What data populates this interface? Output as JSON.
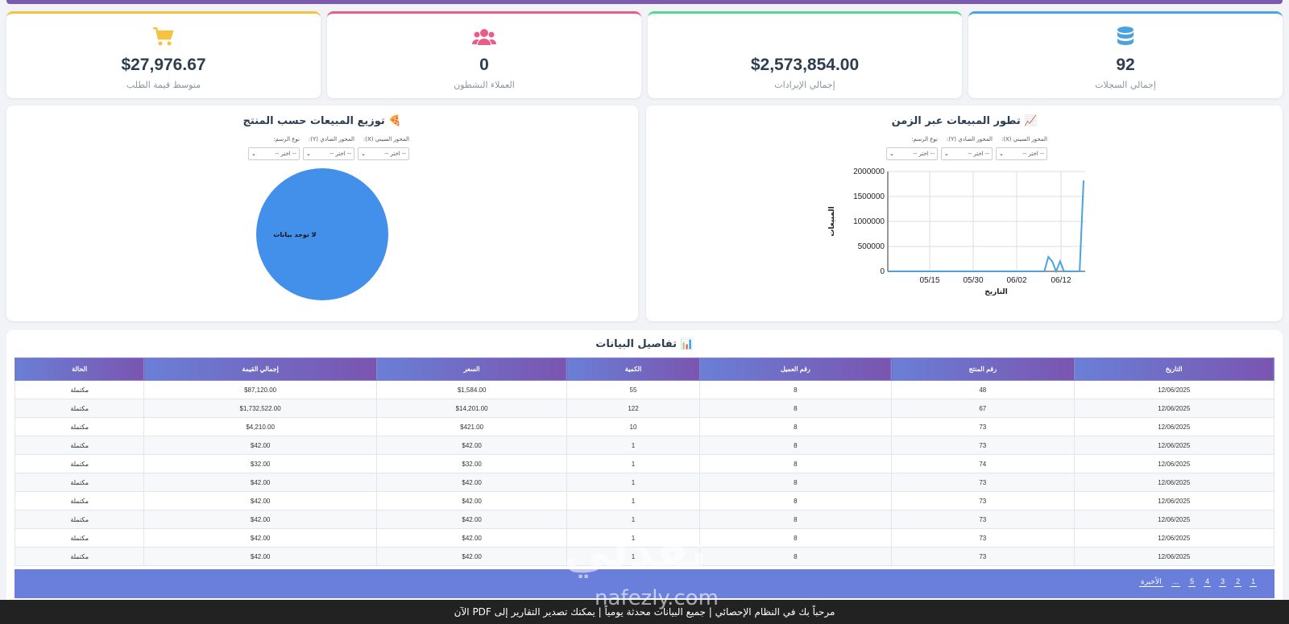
{
  "stats": [
    {
      "icon": "database-icon",
      "value": "92",
      "label": "إجمالي السجلات",
      "color": "#4aa3df"
    },
    {
      "icon": "revenue-icon",
      "value": "$2,573,854.00",
      "label": "إجمالي الإيرادات",
      "color": "#55d98d"
    },
    {
      "icon": "users-icon",
      "value": "0",
      "label": "العملاء النشطون",
      "color": "#e85d8a"
    },
    {
      "icon": "cart-icon",
      "value": "$27,976.67",
      "label": "متوسط قيمة الطلب",
      "color": "#f5c242"
    }
  ],
  "line_panel": {
    "title": "📈 تطور المبيعات عبر الزمن",
    "controls": [
      {
        "label": "المحور السيني (X):",
        "value": "-- اختر --"
      },
      {
        "label": "المحور الصادي (Y):",
        "value": "-- اختر --"
      },
      {
        "label": "نوع الرسم:",
        "value": "-- اختر --"
      }
    ]
  },
  "pie_panel": {
    "title": "🍕 توزيع المبيعات حسب المنتج",
    "controls": [
      {
        "label": "المحور السيني (X):",
        "value": "-- اختر --"
      },
      {
        "label": "المحور الصادي (Y):",
        "value": "-- اختر --"
      },
      {
        "label": "نوع الرسم:",
        "value": "-- اختر --"
      }
    ]
  },
  "chart_data": [
    {
      "type": "line",
      "xlabel": "التاريخ",
      "ylabel": "المبيعات",
      "x_ticks": [
        "05/15",
        "05/30",
        "06/02",
        "06/12"
      ],
      "y_ticks": [
        0,
        500000,
        1000000,
        1500000,
        2000000
      ],
      "ylim": [
        0,
        2000000
      ],
      "grid": true,
      "color": "#4aa3df",
      "series": [
        {
          "values": [
            0,
            0,
            0,
            0,
            0,
            0,
            0,
            0,
            0,
            0,
            0,
            0,
            0,
            0,
            0,
            0,
            0,
            0,
            0,
            0,
            0,
            0,
            0,
            0,
            0,
            0,
            0,
            0,
            0,
            0,
            0,
            0,
            0,
            0,
            0,
            0,
            0,
            0,
            0,
            0,
            0,
            290000,
            200000,
            0,
            200000,
            0,
            0,
            0,
            0,
            0,
            1820000
          ]
        }
      ]
    },
    {
      "type": "pie",
      "slices": [
        {
          "label": "لا توجد بيانات",
          "value": 1
        }
      ],
      "color": "#4290ea"
    }
  ],
  "table": {
    "title": "📊 تفاصيل البيانات",
    "columns": [
      "التاريخ",
      "رقم المنتج",
      "رقم العميل",
      "الكمية",
      "السعر",
      "إجمالي القيمة",
      "الحالة"
    ],
    "rows": [
      [
        "12/06/2025",
        "48",
        "8",
        "55",
        "$1,584.00",
        "$87,120.00",
        "مكتملة"
      ],
      [
        "12/06/2025",
        "67",
        "8",
        "122",
        "$14,201.00",
        "$1,732,522.00",
        "مكتملة"
      ],
      [
        "12/06/2025",
        "73",
        "8",
        "10",
        "$421.00",
        "$4,210.00",
        "مكتملة"
      ],
      [
        "12/06/2025",
        "73",
        "8",
        "1",
        "$42.00",
        "$42.00",
        "مكتملة"
      ],
      [
        "12/06/2025",
        "74",
        "8",
        "1",
        "$32.00",
        "$32.00",
        "مكتملة"
      ],
      [
        "12/06/2025",
        "73",
        "8",
        "1",
        "$42.00",
        "$42.00",
        "مكتملة"
      ],
      [
        "12/06/2025",
        "73",
        "8",
        "1",
        "$42.00",
        "$42.00",
        "مكتملة"
      ],
      [
        "12/06/2025",
        "73",
        "8",
        "1",
        "$42.00",
        "$42.00",
        "مكتملة"
      ],
      [
        "12/06/2025",
        "73",
        "8",
        "1",
        "$42.00",
        "$42.00",
        "مكتملة"
      ],
      [
        "12/06/2025",
        "73",
        "8",
        "1",
        "$42.00",
        "$42.00",
        "مكتملة"
      ]
    ]
  },
  "pagination": [
    "1",
    "2",
    "3",
    "4",
    "5",
    "...",
    "الأخيرة"
  ],
  "footer_text": "مرحباً بك في النظام الإحصائي | جميع البيانات محدثة يومياً | يمكنك تصدير التقارير إلى PDF الآن",
  "watermark": {
    "main": "نفذلي",
    "sub": "nafezly.com"
  }
}
